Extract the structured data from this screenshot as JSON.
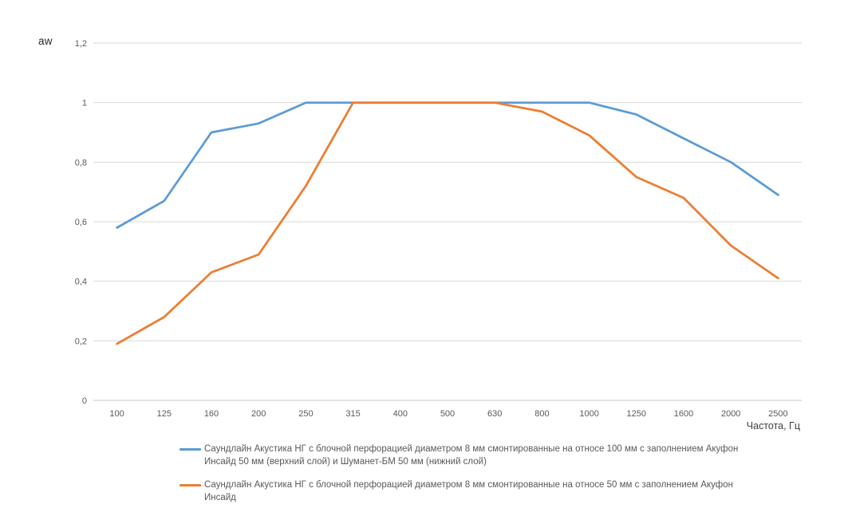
{
  "chart_data": {
    "type": "line",
    "title": "",
    "ylabel": "aw",
    "xlabel": "Частота, Гц",
    "ylim": [
      0,
      1.2
    ],
    "grid": "horizontal",
    "grid_color": "#D9D9D9",
    "axis_line_color": "#C6C6C6",
    "tick_label_color": "#595959",
    "legend_position": "bottom-left",
    "categories": [
      "100",
      "125",
      "160",
      "200",
      "250",
      "315",
      "400",
      "500",
      "630",
      "800",
      "1000",
      "1250",
      "1600",
      "2000",
      "2500"
    ],
    "yticks": {
      "values": [
        0,
        0.2,
        0.4,
        0.6,
        0.8,
        1,
        1.2
      ],
      "labels": [
        "0",
        "0,2",
        "0,4",
        "0,6",
        "0,8",
        "1",
        "1,2"
      ]
    },
    "series": [
      {
        "name": "Саундлайн Акустика НГ с блочной перфорацией диаметром 8 мм смонтированные на относе 100 мм с заполнением Акуфон Инсайд 50 мм (верхний слой) и Шуманет-БМ 50 мм (нижний  слой)",
        "color": "#5B9BD5",
        "values": [
          0.58,
          0.67,
          0.9,
          0.93,
          1,
          1,
          1,
          1,
          1,
          1,
          1,
          0.96,
          0.88,
          0.8,
          0.69
        ]
      },
      {
        "name": "Саундлайн Акустика НГ с блочной перфорацией диаметром 8 мм смонтированные на относе 50 мм с заполнением Акуфон Инсайд",
        "color": "#ED7D31",
        "values": [
          0.19,
          0.28,
          0.43,
          0.49,
          0.72,
          1,
          1,
          1,
          1,
          0.97,
          0.89,
          0.75,
          0.68,
          0.52,
          0.41
        ]
      }
    ]
  }
}
